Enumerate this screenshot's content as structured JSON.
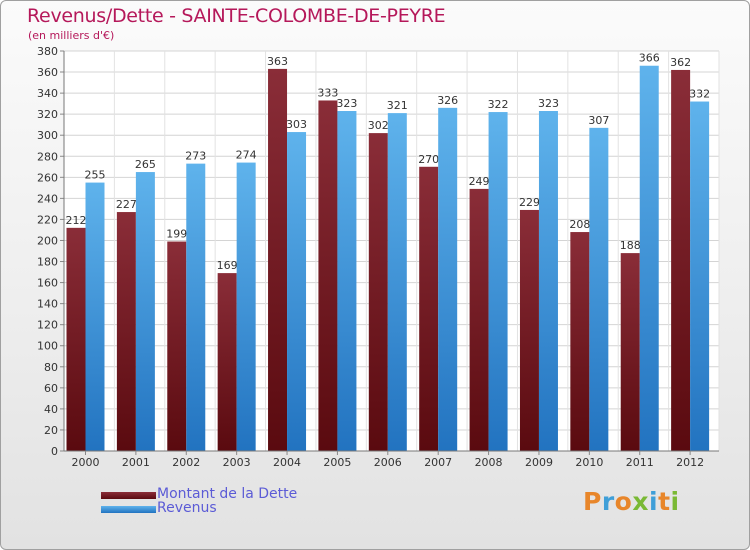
{
  "title": "Revenus/Dette - SAINTE-COLOMBE-DE-PEYRE",
  "subtitle": "(en milliers d'€)",
  "logo_text": "Proxiti",
  "colors": {
    "debt_top": "#8a2d38",
    "debt_bottom": "#5a0a0f",
    "revenue_top": "#5fb3ec",
    "revenue_bottom": "#2273c0",
    "title": "#b5185a",
    "legend_text": "#5b5bd6"
  },
  "chart_data": {
    "type": "bar",
    "title": "Revenus/Dette - SAINTE-COLOMBE-DE-PEYRE",
    "subtitle": "(en milliers d'€)",
    "categories": [
      "2000",
      "2001",
      "2002",
      "2003",
      "2004",
      "2005",
      "2006",
      "2007",
      "2008",
      "2009",
      "2010",
      "2011",
      "2012"
    ],
    "series": [
      {
        "name": "Montant de la Dette",
        "values": [
          212,
          227,
          199,
          169,
          363,
          333,
          302,
          270,
          249,
          229,
          208,
          188,
          362
        ]
      },
      {
        "name": "Revenus",
        "values": [
          255,
          265,
          273,
          274,
          303,
          323,
          321,
          326,
          322,
          323,
          307,
          366,
          332
        ]
      }
    ],
    "ylim": [
      0,
      380
    ],
    "yticks": [
      0,
      20,
      40,
      60,
      80,
      100,
      120,
      140,
      160,
      180,
      200,
      220,
      240,
      260,
      280,
      300,
      320,
      340,
      360,
      380
    ],
    "grid": true,
    "legend_position": "bottom-left",
    "data_labels": true
  }
}
